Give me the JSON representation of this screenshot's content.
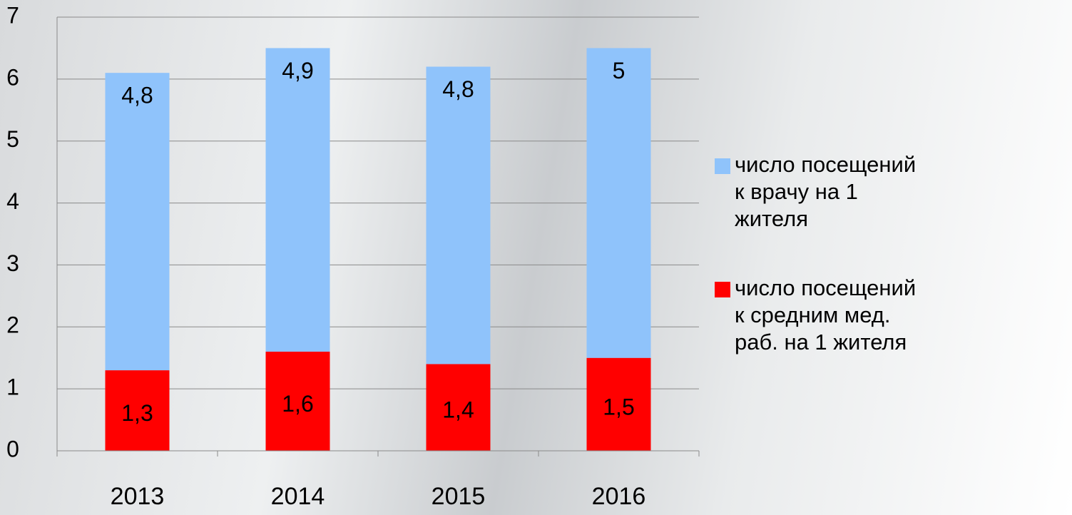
{
  "chart_data": {
    "type": "bar",
    "stacked": true,
    "categories": [
      "2013",
      "2014",
      "2015",
      "2016"
    ],
    "series": [
      {
        "name": "число посещений к врачу на 1 жителя",
        "color": "#8fc3fb",
        "values": [
          4.8,
          4.9,
          4.8,
          5
        ],
        "value_labels": [
          "4,8",
          "4,9",
          "4,8",
          "5"
        ]
      },
      {
        "name": "число посещений к средним мед. раб. на 1 жителя",
        "color": "#ff0000",
        "values": [
          1.3,
          1.6,
          1.4,
          1.5
        ],
        "value_labels": [
          "1,3",
          "1,6",
          "1,4",
          "1,5"
        ]
      }
    ],
    "ylim": [
      0,
      7
    ],
    "yticks": [
      0,
      1,
      2,
      3,
      4,
      5,
      6,
      7
    ],
    "grid": true,
    "legend": "right"
  }
}
